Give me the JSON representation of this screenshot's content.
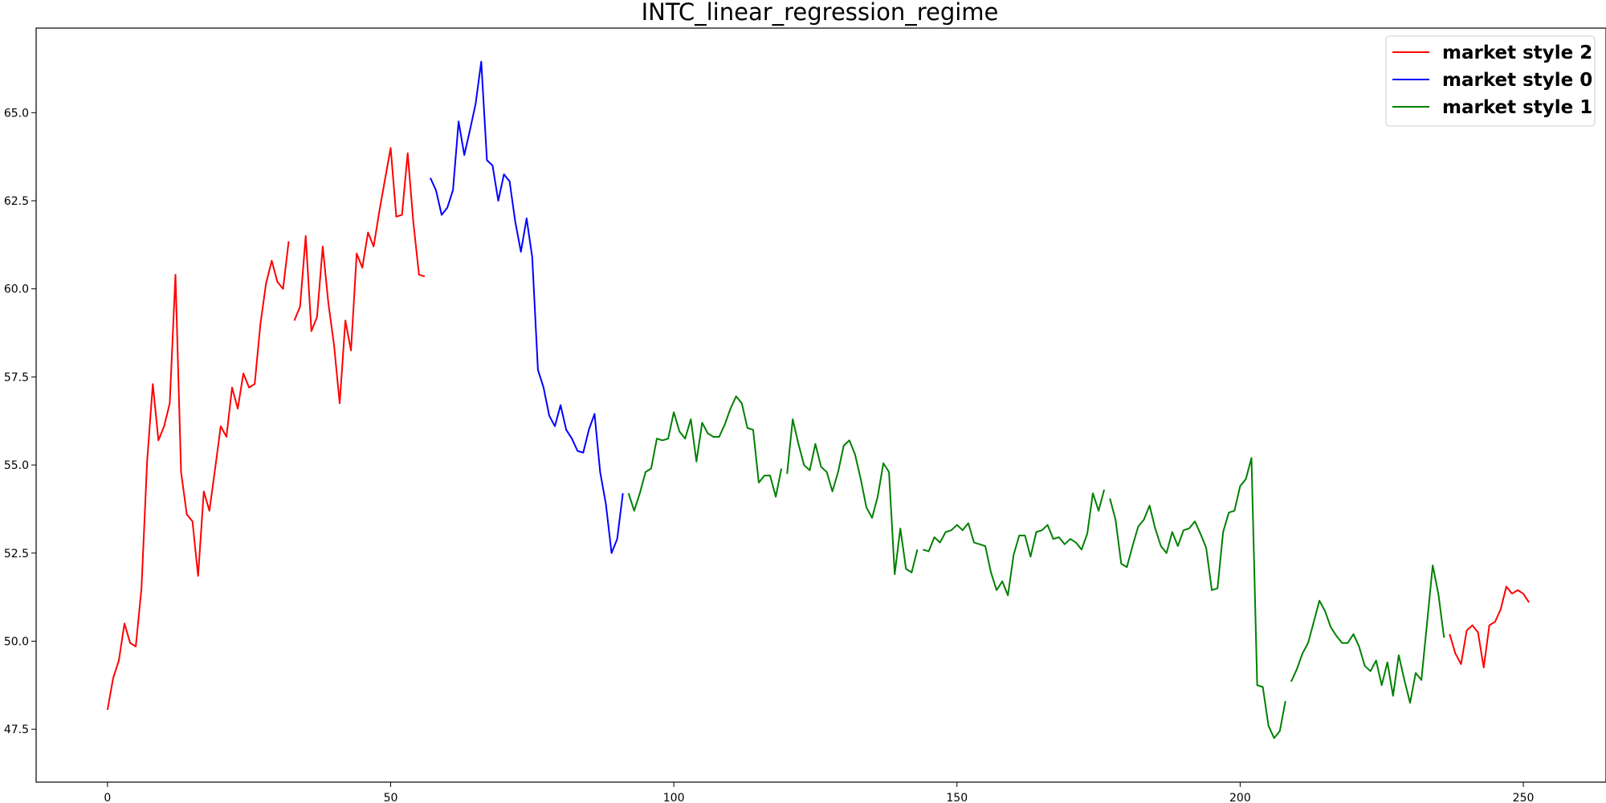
{
  "chart_data": {
    "type": "line",
    "title": "INTC_linear_regression_regime",
    "xlabel": "",
    "ylabel": "",
    "xlim": [
      -12.6,
      264.6
    ],
    "ylim": [
      46.0,
      67.4
    ],
    "x_ticks": [
      0,
      50,
      100,
      150,
      200,
      250
    ],
    "y_ticks": [
      47.5,
      50.0,
      52.5,
      55.0,
      57.5,
      60.0,
      62.5,
      65.0
    ],
    "x_tick_labels": [
      "0",
      "50",
      "100",
      "150",
      "200",
      "250"
    ],
    "y_tick_labels": [
      "47.5",
      "50.0",
      "52.5",
      "55.0",
      "57.5",
      "60.0",
      "62.5",
      "65.0"
    ],
    "grid": false,
    "legend_position": "top-right",
    "legend": [
      {
        "label": "market style 2",
        "color": "#ff0000"
      },
      {
        "label": "market style 0",
        "color": "#0000ff"
      },
      {
        "label": "market style 1",
        "color": "#008000"
      }
    ],
    "series": [
      {
        "name": "market style 2",
        "color": "#ff0000",
        "segments": [
          [
            [
              0,
              48.05
            ],
            [
              1,
              48.95
            ],
            [
              2,
              49.45
            ],
            [
              3,
              50.5
            ],
            [
              4,
              49.95
            ],
            [
              5,
              49.85
            ],
            [
              6,
              51.5
            ],
            [
              7,
              55.1
            ],
            [
              8,
              57.3
            ],
            [
              9,
              55.7
            ],
            [
              10,
              56.1
            ],
            [
              11,
              56.75
            ],
            [
              12,
              60.4
            ],
            [
              13,
              54.8
            ],
            [
              14,
              53.6
            ],
            [
              15,
              53.4
            ],
            [
              16,
              51.85
            ],
            [
              17,
              54.25
            ],
            [
              18,
              53.7
            ],
            [
              19,
              54.9
            ],
            [
              20,
              56.1
            ],
            [
              21,
              55.8
            ],
            [
              22,
              57.2
            ],
            [
              23,
              56.6
            ],
            [
              24,
              57.6
            ],
            [
              25,
              57.2
            ],
            [
              26,
              57.3
            ],
            [
              27,
              59.0
            ],
            [
              28,
              60.15
            ],
            [
              29,
              60.8
            ],
            [
              30,
              60.2
            ],
            [
              31,
              60.0
            ],
            [
              32,
              61.35
            ]
          ],
          [
            [
              33,
              59.1
            ],
            [
              34,
              59.5
            ],
            [
              35,
              61.5
            ],
            [
              36,
              58.8
            ],
            [
              37,
              59.2
            ],
            [
              38,
              61.2
            ],
            [
              39,
              59.6
            ],
            [
              40,
              58.4
            ],
            [
              41,
              56.75
            ],
            [
              42,
              59.1
            ],
            [
              43,
              58.25
            ],
            [
              44,
              61.0
            ],
            [
              45,
              60.6
            ],
            [
              46,
              61.6
            ],
            [
              47,
              61.2
            ],
            [
              48,
              62.2
            ],
            [
              49,
              63.1
            ],
            [
              50,
              64.0
            ],
            [
              51,
              62.05
            ],
            [
              52,
              62.1
            ],
            [
              53,
              63.85
            ],
            [
              54,
              61.9
            ],
            [
              55,
              60.4
            ],
            [
              56,
              60.35
            ]
          ]
        ]
      },
      {
        "name": "market style 0",
        "color": "#0000ff",
        "segments": [
          [
            [
              57,
              63.15
            ],
            [
              58,
              62.8
            ],
            [
              59,
              62.1
            ],
            [
              60,
              62.3
            ],
            [
              61,
              62.8
            ],
            [
              62,
              64.75
            ],
            [
              63,
              63.8
            ],
            [
              64,
              64.5
            ],
            [
              65,
              65.25
            ],
            [
              66,
              66.45
            ],
            [
              67,
              63.65
            ],
            [
              68,
              63.5
            ],
            [
              69,
              62.5
            ],
            [
              70,
              63.25
            ],
            [
              71,
              63.05
            ],
            [
              72,
              61.9
            ],
            [
              73,
              61.05
            ],
            [
              74,
              62.0
            ],
            [
              75,
              60.9
            ],
            [
              76,
              57.7
            ],
            [
              77,
              57.2
            ],
            [
              78,
              56.4
            ],
            [
              79,
              56.1
            ],
            [
              80,
              56.7
            ],
            [
              81,
              56.0
            ],
            [
              82,
              55.75
            ],
            [
              83,
              55.4
            ],
            [
              84,
              55.35
            ],
            [
              85,
              56.0
            ],
            [
              86,
              56.45
            ],
            [
              87,
              54.8
            ],
            [
              88,
              53.9
            ],
            [
              89,
              52.5
            ],
            [
              90,
              52.9
            ],
            [
              91,
              54.2
            ]
          ]
        ]
      },
      {
        "name": "market style 1",
        "color": "#008000",
        "segments": [
          [
            [
              92,
              54.2
            ],
            [
              93,
              53.7
            ],
            [
              94,
              54.2
            ],
            [
              95,
              54.8
            ],
            [
              96,
              54.9
            ],
            [
              97,
              55.75
            ],
            [
              98,
              55.7
            ],
            [
              99,
              55.75
            ],
            [
              100,
              56.5
            ],
            [
              101,
              55.95
            ],
            [
              102,
              55.75
            ],
            [
              103,
              56.3
            ],
            [
              104,
              55.1
            ],
            [
              105,
              56.2
            ],
            [
              106,
              55.9
            ],
            [
              107,
              55.8
            ],
            [
              108,
              55.8
            ],
            [
              109,
              56.15
            ],
            [
              110,
              56.6
            ],
            [
              111,
              56.95
            ],
            [
              112,
              56.75
            ],
            [
              113,
              56.05
            ],
            [
              114,
              56.0
            ],
            [
              115,
              54.5
            ],
            [
              116,
              54.7
            ],
            [
              117,
              54.7
            ],
            [
              118,
              54.1
            ],
            [
              119,
              54.9
            ]
          ],
          [
            [
              120,
              54.75
            ],
            [
              121,
              56.3
            ],
            [
              122,
              55.6
            ],
            [
              123,
              55.0
            ],
            [
              124,
              54.85
            ],
            [
              125,
              55.6
            ],
            [
              126,
              54.95
            ],
            [
              127,
              54.8
            ],
            [
              128,
              54.25
            ],
            [
              129,
              54.8
            ],
            [
              130,
              55.55
            ],
            [
              131,
              55.7
            ],
            [
              132,
              55.3
            ],
            [
              133,
              54.6
            ],
            [
              134,
              53.8
            ],
            [
              135,
              53.5
            ],
            [
              136,
              54.1
            ],
            [
              137,
              55.05
            ],
            [
              138,
              54.8
            ],
            [
              139,
              51.9
            ],
            [
              140,
              53.2
            ],
            [
              141,
              52.05
            ],
            [
              142,
              51.95
            ],
            [
              143,
              52.6
            ]
          ],
          [
            [
              144,
              52.6
            ],
            [
              145,
              52.55
            ],
            [
              146,
              52.95
            ],
            [
              147,
              52.8
            ],
            [
              148,
              53.1
            ],
            [
              149,
              53.15
            ],
            [
              150,
              53.3
            ],
            [
              151,
              53.15
            ],
            [
              152,
              53.35
            ],
            [
              153,
              52.8
            ],
            [
              154,
              52.75
            ],
            [
              155,
              52.7
            ],
            [
              156,
              51.95
            ],
            [
              157,
              51.45
            ],
            [
              158,
              51.7
            ],
            [
              159,
              51.3
            ],
            [
              160,
              52.45
            ],
            [
              161,
              53.0
            ],
            [
              162,
              53.0
            ],
            [
              163,
              52.4
            ],
            [
              164,
              53.1
            ],
            [
              165,
              53.15
            ],
            [
              166,
              53.3
            ],
            [
              167,
              52.9
            ],
            [
              168,
              52.95
            ],
            [
              169,
              52.75
            ],
            [
              170,
              52.9
            ],
            [
              171,
              52.8
            ],
            [
              172,
              52.6
            ],
            [
              173,
              53.05
            ],
            [
              174,
              54.2
            ],
            [
              175,
              53.7
            ],
            [
              176,
              54.3
            ]
          ],
          [
            [
              177,
              54.05
            ],
            [
              178,
              53.45
            ],
            [
              179,
              52.2
            ],
            [
              180,
              52.1
            ],
            [
              181,
              52.7
            ],
            [
              182,
              53.25
            ],
            [
              183,
              53.45
            ],
            [
              184,
              53.85
            ],
            [
              185,
              53.2
            ],
            [
              186,
              52.7
            ],
            [
              187,
              52.5
            ],
            [
              188,
              53.1
            ],
            [
              189,
              52.7
            ],
            [
              190,
              53.15
            ],
            [
              191,
              53.2
            ],
            [
              192,
              53.4
            ],
            [
              193,
              53.05
            ],
            [
              194,
              52.65
            ],
            [
              195,
              51.45
            ],
            [
              196,
              51.5
            ],
            [
              197,
              53.1
            ],
            [
              198,
              53.65
            ],
            [
              199,
              53.7
            ],
            [
              200,
              54.4
            ],
            [
              201,
              54.6
            ],
            [
              202,
              55.2
            ],
            [
              203,
              48.75
            ],
            [
              204,
              48.7
            ],
            [
              205,
              47.6
            ],
            [
              206,
              47.25
            ],
            [
              207,
              47.45
            ],
            [
              208,
              48.3
            ]
          ],
          [
            [
              209,
              48.85
            ],
            [
              210,
              49.2
            ],
            [
              211,
              49.65
            ],
            [
              212,
              49.95
            ],
            [
              213,
              50.55
            ],
            [
              214,
              51.15
            ],
            [
              215,
              50.85
            ],
            [
              216,
              50.4
            ],
            [
              217,
              50.15
            ],
            [
              218,
              49.95
            ],
            [
              219,
              49.95
            ],
            [
              220,
              50.2
            ],
            [
              221,
              49.85
            ],
            [
              222,
              49.3
            ],
            [
              223,
              49.15
            ],
            [
              224,
              49.45
            ],
            [
              225,
              48.75
            ],
            [
              226,
              49.4
            ],
            [
              227,
              48.45
            ],
            [
              228,
              49.6
            ],
            [
              229,
              48.9
            ],
            [
              230,
              48.25
            ],
            [
              231,
              49.1
            ],
            [
              232,
              48.9
            ],
            [
              233,
              50.5
            ],
            [
              234,
              52.15
            ],
            [
              235,
              51.35
            ],
            [
              236,
              50.1
            ]
          ]
        ]
      },
      {
        "name": "market style 2",
        "color": "#ff0000",
        "segments": [
          [
            [
              237,
              50.2
            ],
            [
              238,
              49.65
            ],
            [
              239,
              49.35
            ],
            [
              240,
              50.3
            ],
            [
              241,
              50.45
            ],
            [
              242,
              50.25
            ],
            [
              243,
              49.25
            ],
            [
              244,
              50.45
            ],
            [
              245,
              50.55
            ],
            [
              246,
              50.9
            ],
            [
              247,
              51.55
            ],
            [
              248,
              51.35
            ],
            [
              249,
              51.45
            ],
            [
              250,
              51.35
            ],
            [
              251,
              51.1
            ]
          ]
        ]
      }
    ]
  }
}
